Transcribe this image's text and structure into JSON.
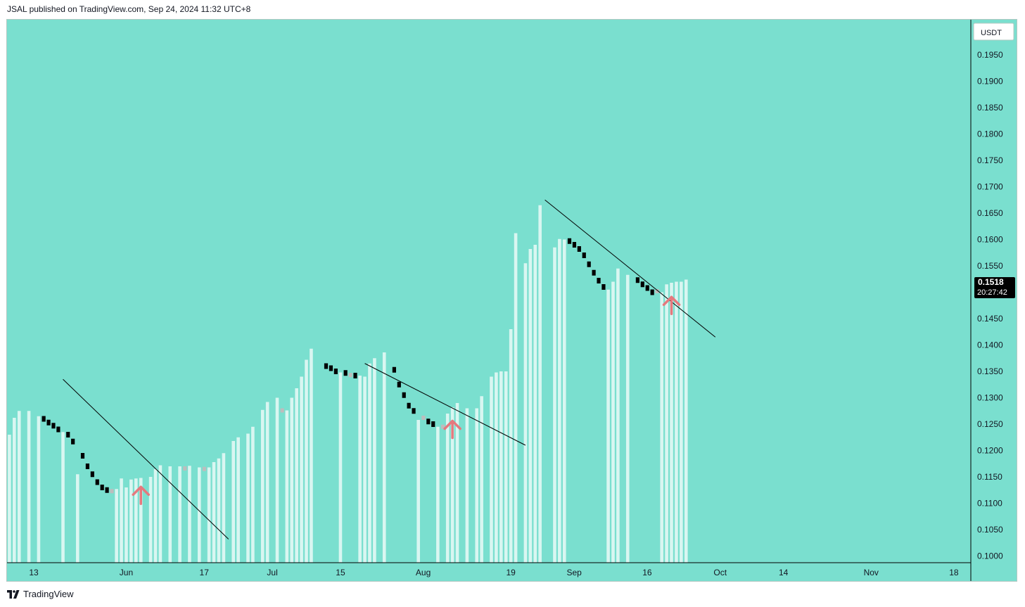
{
  "header": {
    "publish_line": "JSAL published on TradingView.com, Sep 24, 2024 11:32 UTC+8"
  },
  "footer": {
    "brand": "TradingView"
  },
  "colors": {
    "background": "#7adfcf",
    "up_bar": "#d9f6f1",
    "down_bar": "#000000",
    "neutral_bar": "#bdbdbd",
    "arrow": "#e5797e",
    "trendline": "#000000",
    "price_badge": "#000000"
  },
  "chart_data": {
    "type": "bar",
    "currency": "USDT",
    "ylim": [
      0.0985,
      0.2
    ],
    "y_ticks": [
      "0.1950",
      "0.1900",
      "0.1850",
      "0.1800",
      "0.1750",
      "0.1700",
      "0.1650",
      "0.1600",
      "0.1550",
      "0.1500",
      "0.1450",
      "0.1400",
      "0.1350",
      "0.1300",
      "0.1250",
      "0.1200",
      "0.1150",
      "0.1100",
      "0.1050",
      "0.1000"
    ],
    "x_ticks": [
      {
        "day": 0,
        "label": "13"
      },
      {
        "day": 19,
        "label": "Jun"
      },
      {
        "day": 35,
        "label": "17"
      },
      {
        "day": 49,
        "label": "Jul"
      },
      {
        "day": 63,
        "label": "15"
      },
      {
        "day": 80,
        "label": "Aug"
      },
      {
        "day": 98,
        "label": "19"
      },
      {
        "day": 111,
        "label": "Sep"
      },
      {
        "day": 126,
        "label": "16"
      },
      {
        "day": 141,
        "label": "Oct"
      },
      {
        "day": 154,
        "label": "14"
      },
      {
        "day": 172,
        "label": "Nov"
      },
      {
        "day": 189,
        "label": "18"
      }
    ],
    "last_price": "0.1518",
    "countdown": "20:27:42",
    "bars": [
      {
        "day": -5,
        "value": 0.123,
        "kind": "up"
      },
      {
        "day": -4,
        "value": 0.1262,
        "kind": "up"
      },
      {
        "day": -3,
        "value": 0.1275,
        "kind": "up"
      },
      {
        "day": -1,
        "value": 0.1275,
        "kind": "up"
      },
      {
        "day": 1,
        "value": 0.1265,
        "kind": "up"
      },
      {
        "day": 2,
        "value": 0.126,
        "kind": "down"
      },
      {
        "day": 3,
        "value": 0.1253,
        "kind": "down"
      },
      {
        "day": 4,
        "value": 0.1247,
        "kind": "down"
      },
      {
        "day": 5,
        "value": 0.124,
        "kind": "down"
      },
      {
        "day": 6,
        "value": 0.1235,
        "kind": "up"
      },
      {
        "day": 7,
        "value": 0.123,
        "kind": "down"
      },
      {
        "day": 8,
        "value": 0.1217,
        "kind": "down"
      },
      {
        "day": 9,
        "value": 0.1155,
        "kind": "up"
      },
      {
        "day": 10,
        "value": 0.119,
        "kind": "down"
      },
      {
        "day": 11,
        "value": 0.117,
        "kind": "down"
      },
      {
        "day": 12,
        "value": 0.1155,
        "kind": "down"
      },
      {
        "day": 13,
        "value": 0.114,
        "kind": "down"
      },
      {
        "day": 14,
        "value": 0.113,
        "kind": "down"
      },
      {
        "day": 15,
        "value": 0.1125,
        "kind": "down"
      },
      {
        "day": 16,
        "value": 0.1123,
        "kind": "neutral"
      },
      {
        "day": 17,
        "value": 0.1127,
        "kind": "up"
      },
      {
        "day": 18,
        "value": 0.1147,
        "kind": "up"
      },
      {
        "day": 19,
        "value": 0.113,
        "kind": "up"
      },
      {
        "day": 20,
        "value": 0.1145,
        "kind": "up"
      },
      {
        "day": 21,
        "value": 0.1147,
        "kind": "up"
      },
      {
        "day": 22,
        "value": 0.1148,
        "kind": "up"
      },
      {
        "day": 24,
        "value": 0.115,
        "kind": "up"
      },
      {
        "day": 25,
        "value": 0.1165,
        "kind": "up"
      },
      {
        "day": 26,
        "value": 0.1172,
        "kind": "up"
      },
      {
        "day": 28,
        "value": 0.117,
        "kind": "up"
      },
      {
        "day": 30,
        "value": 0.117,
        "kind": "up"
      },
      {
        "day": 31,
        "value": 0.1166,
        "kind": "neutral"
      },
      {
        "day": 32,
        "value": 0.1171,
        "kind": "up"
      },
      {
        "day": 34,
        "value": 0.1168,
        "kind": "up"
      },
      {
        "day": 35,
        "value": 0.1165,
        "kind": "neutral"
      },
      {
        "day": 36,
        "value": 0.1168,
        "kind": "up"
      },
      {
        "day": 37,
        "value": 0.1178,
        "kind": "up"
      },
      {
        "day": 38,
        "value": 0.1185,
        "kind": "up"
      },
      {
        "day": 39,
        "value": 0.1195,
        "kind": "up"
      },
      {
        "day": 41,
        "value": 0.1218,
        "kind": "up"
      },
      {
        "day": 42,
        "value": 0.1225,
        "kind": "up"
      },
      {
        "day": 44,
        "value": 0.1232,
        "kind": "up"
      },
      {
        "day": 45,
        "value": 0.1245,
        "kind": "up"
      },
      {
        "day": 47,
        "value": 0.1277,
        "kind": "up"
      },
      {
        "day": 48,
        "value": 0.1292,
        "kind": "up"
      },
      {
        "day": 50,
        "value": 0.13,
        "kind": "up"
      },
      {
        "day": 51,
        "value": 0.1276,
        "kind": "neutral"
      },
      {
        "day": 52,
        "value": 0.1276,
        "kind": "up"
      },
      {
        "day": 53,
        "value": 0.13,
        "kind": "up"
      },
      {
        "day": 54,
        "value": 0.1318,
        "kind": "up"
      },
      {
        "day": 55,
        "value": 0.134,
        "kind": "up"
      },
      {
        "day": 56,
        "value": 0.1372,
        "kind": "up"
      },
      {
        "day": 57,
        "value": 0.1393,
        "kind": "up"
      },
      {
        "day": 60,
        "value": 0.136,
        "kind": "down"
      },
      {
        "day": 61,
        "value": 0.1356,
        "kind": "down"
      },
      {
        "day": 62,
        "value": 0.135,
        "kind": "down"
      },
      {
        "day": 63,
        "value": 0.1348,
        "kind": "up"
      },
      {
        "day": 64,
        "value": 0.1347,
        "kind": "down"
      },
      {
        "day": 65,
        "value": 0.1343,
        "kind": "neutral"
      },
      {
        "day": 66,
        "value": 0.1342,
        "kind": "down"
      },
      {
        "day": 67,
        "value": 0.1342,
        "kind": "up"
      },
      {
        "day": 68,
        "value": 0.134,
        "kind": "up"
      },
      {
        "day": 69,
        "value": 0.1365,
        "kind": "up"
      },
      {
        "day": 70,
        "value": 0.1375,
        "kind": "up"
      },
      {
        "day": 72,
        "value": 0.1386,
        "kind": "up"
      },
      {
        "day": 74,
        "value": 0.1353,
        "kind": "down"
      },
      {
        "day": 75,
        "value": 0.1325,
        "kind": "down"
      },
      {
        "day": 76,
        "value": 0.1305,
        "kind": "down"
      },
      {
        "day": 77,
        "value": 0.1285,
        "kind": "down"
      },
      {
        "day": 78,
        "value": 0.1275,
        "kind": "down"
      },
      {
        "day": 79,
        "value": 0.1258,
        "kind": "up"
      },
      {
        "day": 80,
        "value": 0.1262,
        "kind": "neutral"
      },
      {
        "day": 81,
        "value": 0.1255,
        "kind": "down"
      },
      {
        "day": 82,
        "value": 0.125,
        "kind": "down"
      },
      {
        "day": 83,
        "value": 0.1245,
        "kind": "up"
      },
      {
        "day": 84,
        "value": 0.1245,
        "kind": "neutral"
      },
      {
        "day": 85,
        "value": 0.127,
        "kind": "up"
      },
      {
        "day": 86,
        "value": 0.1282,
        "kind": "up"
      },
      {
        "day": 87,
        "value": 0.129,
        "kind": "up"
      },
      {
        "day": 89,
        "value": 0.128,
        "kind": "up"
      },
      {
        "day": 91,
        "value": 0.128,
        "kind": "up"
      },
      {
        "day": 92,
        "value": 0.1303,
        "kind": "up"
      },
      {
        "day": 94,
        "value": 0.134,
        "kind": "up"
      },
      {
        "day": 95,
        "value": 0.1348,
        "kind": "up"
      },
      {
        "day": 96,
        "value": 0.135,
        "kind": "up"
      },
      {
        "day": 97,
        "value": 0.135,
        "kind": "up"
      },
      {
        "day": 98,
        "value": 0.143,
        "kind": "up"
      },
      {
        "day": 99,
        "value": 0.1612,
        "kind": "up"
      },
      {
        "day": 101,
        "value": 0.1555,
        "kind": "up"
      },
      {
        "day": 102,
        "value": 0.1582,
        "kind": "up"
      },
      {
        "day": 103,
        "value": 0.159,
        "kind": "up"
      },
      {
        "day": 104,
        "value": 0.1665,
        "kind": "up"
      },
      {
        "day": 107,
        "value": 0.1585,
        "kind": "up"
      },
      {
        "day": 108,
        "value": 0.1601,
        "kind": "up"
      },
      {
        "day": 109,
        "value": 0.16,
        "kind": "up"
      },
      {
        "day": 110,
        "value": 0.1597,
        "kind": "down"
      },
      {
        "day": 111,
        "value": 0.159,
        "kind": "down"
      },
      {
        "day": 112,
        "value": 0.1582,
        "kind": "down"
      },
      {
        "day": 113,
        "value": 0.157,
        "kind": "down"
      },
      {
        "day": 114,
        "value": 0.1553,
        "kind": "down"
      },
      {
        "day": 115,
        "value": 0.1537,
        "kind": "down"
      },
      {
        "day": 116,
        "value": 0.1522,
        "kind": "down"
      },
      {
        "day": 117,
        "value": 0.151,
        "kind": "down"
      },
      {
        "day": 118,
        "value": 0.1505,
        "kind": "up"
      },
      {
        "day": 119,
        "value": 0.152,
        "kind": "up"
      },
      {
        "day": 120,
        "value": 0.1545,
        "kind": "up"
      },
      {
        "day": 122,
        "value": 0.1533,
        "kind": "up"
      },
      {
        "day": 124,
        "value": 0.1523,
        "kind": "down"
      },
      {
        "day": 125,
        "value": 0.1515,
        "kind": "down"
      },
      {
        "day": 126,
        "value": 0.1508,
        "kind": "down"
      },
      {
        "day": 127,
        "value": 0.15,
        "kind": "down"
      },
      {
        "day": 128,
        "value": 0.1502,
        "kind": "neutral"
      },
      {
        "day": 129,
        "value": 0.15,
        "kind": "up"
      },
      {
        "day": 130,
        "value": 0.1515,
        "kind": "up"
      },
      {
        "day": 131,
        "value": 0.1518,
        "kind": "up"
      },
      {
        "day": 132,
        "value": 0.152,
        "kind": "up"
      },
      {
        "day": 133,
        "value": 0.152,
        "kind": "up"
      },
      {
        "day": 134,
        "value": 0.1524,
        "kind": "up"
      }
    ],
    "trendlines": [
      {
        "from": [
          6,
          0.1335
        ],
        "to": [
          40,
          0.1032
        ]
      },
      {
        "from": [
          68,
          0.1365
        ],
        "to": [
          101,
          0.121
        ]
      },
      {
        "from": [
          105,
          0.1675
        ],
        "to": [
          140,
          0.1415
        ]
      }
    ],
    "up_arrows": [
      {
        "day": 22,
        "value": 0.1115
      },
      {
        "day": 86,
        "value": 0.124
      },
      {
        "day": 131,
        "value": 0.1475
      }
    ]
  }
}
